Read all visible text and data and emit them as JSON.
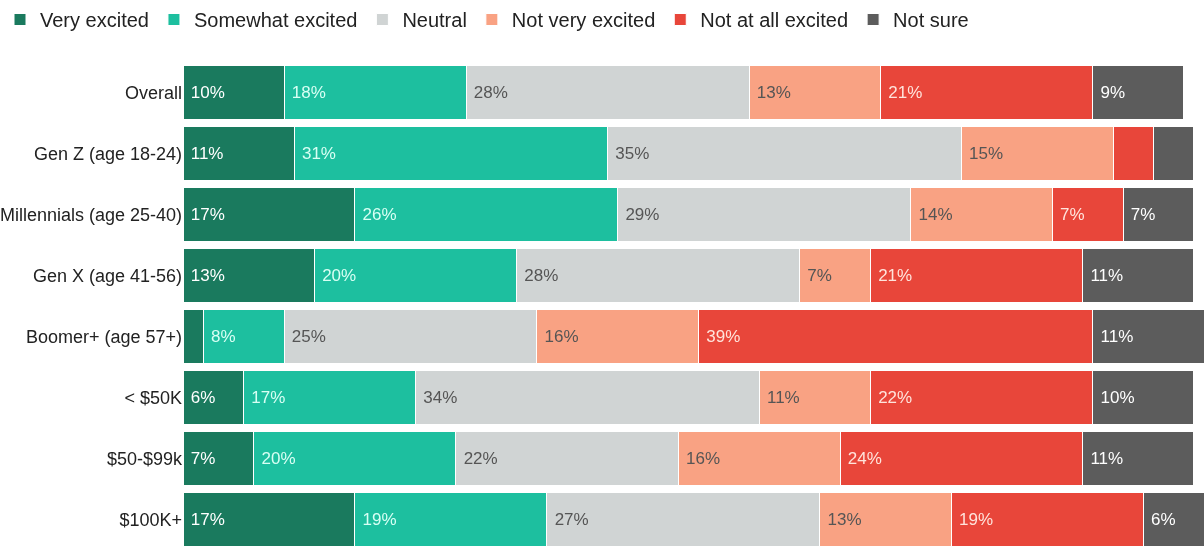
{
  "chart_data": {
    "type": "bar",
    "orientation": "horizontal",
    "stacked": true,
    "legend": "top",
    "tick_labels": "y",
    "categories": [
      "Overall",
      "Gen Z (age 18-24)",
      "Millennials (age 25-40)",
      "Gen X (age 41-56)",
      "Boomer+ (age 57+)",
      "< $50K",
      "$50-$99k",
      "$100K+"
    ],
    "series": [
      {
        "name": "Very excited",
        "color": "#1a7a5e",
        "values": [
          10,
          11,
          17,
          13,
          2,
          6,
          7,
          17
        ],
        "value_labels": [
          "10%",
          "11%",
          "17%",
          "13%",
          null,
          "6%",
          "7%",
          "17%"
        ]
      },
      {
        "name": "Somewhat excited",
        "color": "#1dbf9f",
        "values": [
          18,
          31,
          26,
          20,
          8,
          17,
          20,
          19
        ],
        "value_labels": [
          "18%",
          "31%",
          "26%",
          "20%",
          "8%",
          "17%",
          "20%",
          "19%"
        ]
      },
      {
        "name": "Neutral",
        "color": "#d0d4d4",
        "values": [
          28,
          35,
          29,
          28,
          25,
          34,
          22,
          27
        ],
        "value_labels": [
          "28%",
          "35%",
          "29%",
          "28%",
          "25%",
          "34%",
          "22%",
          "27%"
        ]
      },
      {
        "name": "Not very excited",
        "color": "#f9a283",
        "values": [
          13,
          15,
          14,
          7,
          16,
          11,
          16,
          13
        ],
        "value_labels": [
          "13%",
          "15%",
          "14%",
          "7%",
          "16%",
          "11%",
          "16%",
          "13%"
        ]
      },
      {
        "name": "Not at all excited",
        "color": "#e8463a",
        "values": [
          21,
          4,
          7,
          21,
          39,
          22,
          24,
          19
        ],
        "value_labels": [
          "21%",
          null,
          "7%",
          "21%",
          "39%",
          "22%",
          "24%",
          "19%"
        ]
      },
      {
        "name": "Not sure",
        "color": "#5c5c5c",
        "values": [
          9,
          4,
          7,
          11,
          11,
          10,
          11,
          6
        ],
        "value_labels": [
          "9%",
          null,
          "7%",
          "11%",
          "11%",
          "10%",
          "11%",
          "6%"
        ]
      }
    ]
  }
}
